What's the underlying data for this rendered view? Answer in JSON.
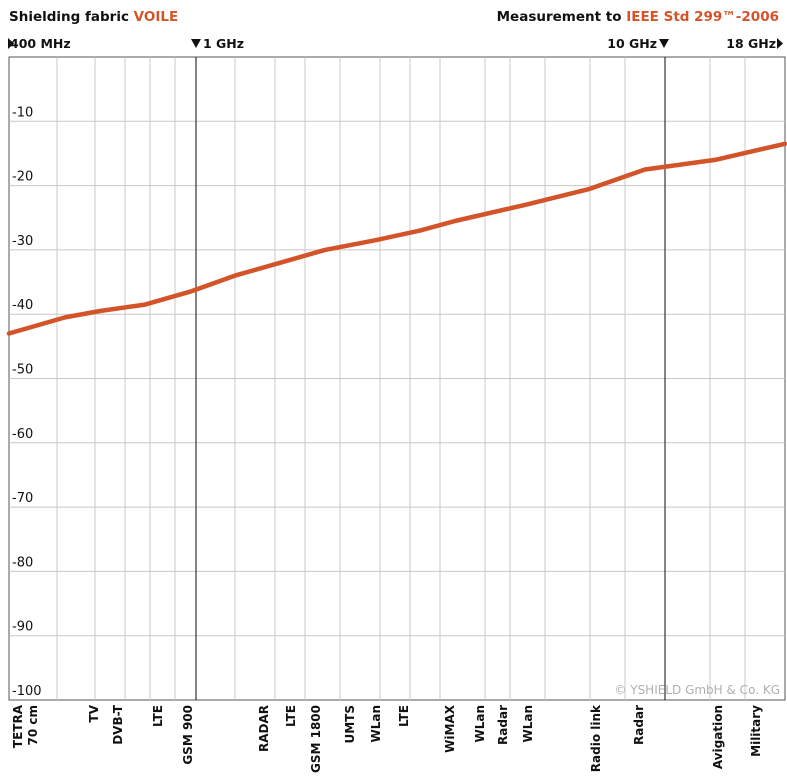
{
  "header": {
    "title_prefix": "Shielding fabric ",
    "title_accent": "VOILE",
    "measurement_prefix": "Measurement to ",
    "measurement_accent": "IEEE Std 299™-2006"
  },
  "colors": {
    "accent": "#d4542a",
    "line": "#d4542a",
    "grid": "#c8c8c8",
    "marker": "#333333"
  },
  "chart_data": {
    "type": "line",
    "title": "",
    "xlabel": "",
    "ylabel": "",
    "ylim": [
      -100,
      0
    ],
    "yticks": [
      -10,
      -20,
      -30,
      -40,
      -50,
      -60,
      -70,
      -80,
      -90,
      -100
    ],
    "grid": true,
    "freq_markers": [
      {
        "label": "400 MHz",
        "direction": "right"
      },
      {
        "label": "1 GHz",
        "direction": "down"
      },
      {
        "label": "10 GHz",
        "direction": "down"
      },
      {
        "label": "18 GHz",
        "direction": "right"
      }
    ],
    "bands": [
      [
        "TETRA",
        "70 cm"
      ],
      [
        "TV"
      ],
      [
        "DVB-T"
      ],
      [
        "LTE"
      ],
      [
        "GSM 900"
      ],
      [
        "RADAR"
      ],
      [
        "LTE"
      ],
      [
        "GSM 1800"
      ],
      [
        "UMTS"
      ],
      [
        "WLan"
      ],
      [
        "LTE"
      ],
      [
        "WiMAX"
      ],
      [
        "WLan"
      ],
      [
        "Radar"
      ],
      [
        "WLan"
      ],
      [
        "Radio link"
      ],
      [
        "Radar"
      ],
      [
        "Avigation"
      ],
      [
        "Military"
      ]
    ],
    "series": [
      {
        "values": [
          -43,
          -40.5,
          -39.5,
          -38.5,
          -36.5,
          -34,
          -32,
          -30,
          -28.5,
          -27,
          -25.5,
          -23,
          -20.5,
          -17.5,
          -16,
          -13.5
        ]
      }
    ],
    "copyright": "© YSHIELD GmbH & Co. KG"
  }
}
